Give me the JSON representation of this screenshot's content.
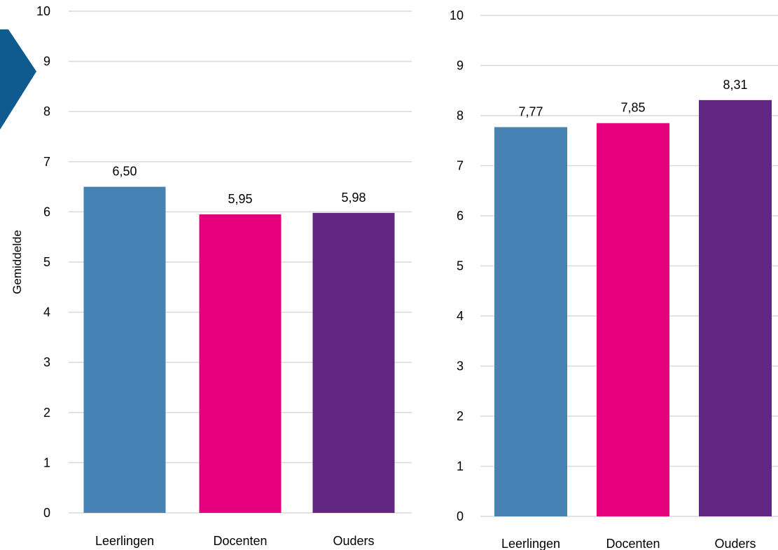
{
  "colors": {
    "decor_arrow": "#0f5a8f",
    "grid": "#d9d9d9"
  },
  "chart_data": [
    {
      "type": "bar",
      "ylabel": "Gemiddelde",
      "ylim": [
        0,
        10
      ],
      "yticks": [
        "0",
        "1",
        "2",
        "3",
        "4",
        "5",
        "6",
        "7",
        "8",
        "9",
        "10"
      ],
      "grid": true,
      "categories": [
        "Leerlingen",
        "Docenten",
        "Ouders"
      ],
      "values": [
        6.5,
        5.95,
        5.98
      ],
      "value_labels": [
        "6,50",
        "5,95",
        "5,98"
      ],
      "bar_colors": [
        "#4682b4",
        "#e6007e",
        "#612682"
      ]
    },
    {
      "type": "bar",
      "ylabel": "",
      "ylim": [
        0,
        10
      ],
      "yticks": [
        "0",
        "1",
        "2",
        "3",
        "4",
        "5",
        "6",
        "7",
        "8",
        "9",
        "10"
      ],
      "grid": true,
      "categories": [
        "Leerlingen",
        "Docenten",
        "Ouders"
      ],
      "values": [
        7.77,
        7.85,
        8.31
      ],
      "value_labels": [
        "7,77",
        "7,85",
        "8,31"
      ],
      "bar_colors": [
        "#4682b4",
        "#e6007e",
        "#612682"
      ]
    }
  ]
}
